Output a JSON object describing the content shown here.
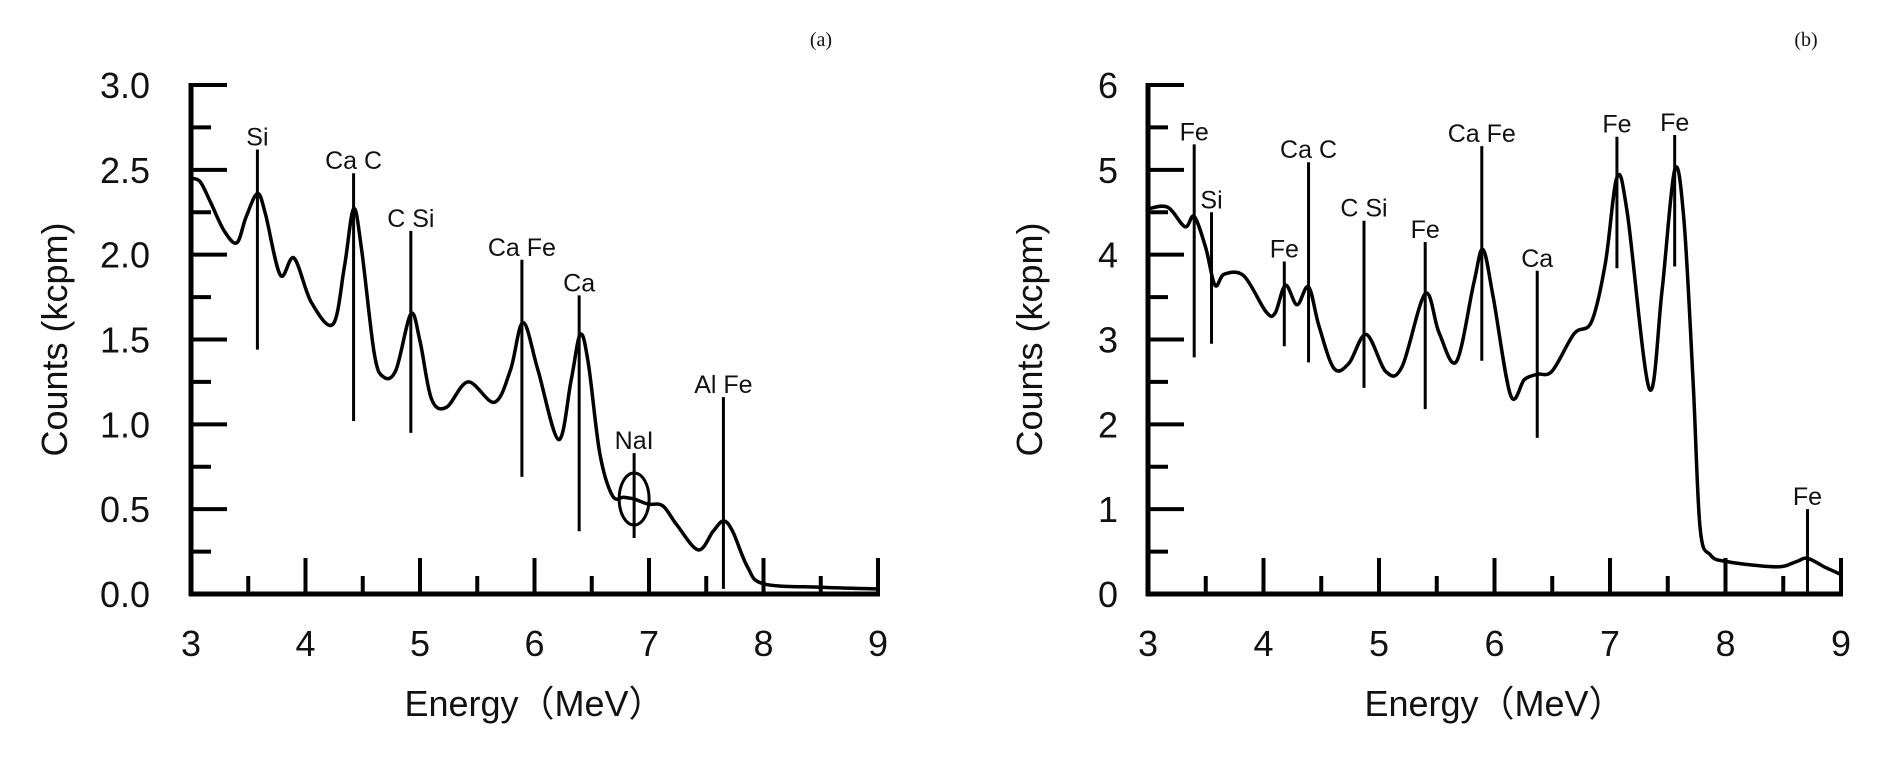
{
  "chart_data": [
    {
      "type": "line",
      "panel_label": "(a)",
      "xlabel": "Energy（MeV）",
      "ylabel": "Counts (kcpm)",
      "xlim": [
        3,
        9
      ],
      "ylim": [
        0,
        3.0
      ],
      "xticks": [
        "3",
        "4",
        "5",
        "6",
        "7",
        "8",
        "9"
      ],
      "yticks": [
        "0.0",
        "0.5",
        "1.0",
        "1.5",
        "2.0",
        "2.5",
        "3.0"
      ],
      "grid": false,
      "line_color": "#000000",
      "series": [
        {
          "x": [
            3.0,
            3.08,
            3.17,
            3.29,
            3.4,
            3.48,
            3.58,
            3.65,
            3.78,
            3.9,
            4.05,
            4.24,
            4.34,
            4.42,
            4.49,
            4.6,
            4.68,
            4.79,
            4.92,
            5.0,
            5.1,
            5.23,
            5.42,
            5.65,
            5.79,
            5.9,
            6.03,
            6.21,
            6.32,
            6.4,
            6.47,
            6.57,
            6.68,
            6.78,
            6.87,
            6.99,
            7.12,
            7.24,
            7.43,
            7.56,
            7.65,
            7.73,
            7.86,
            8.0,
            8.5,
            9.0
          ],
          "y": [
            2.45,
            2.43,
            2.31,
            2.14,
            2.07,
            2.22,
            2.36,
            2.24,
            1.88,
            1.98,
            1.72,
            1.59,
            1.93,
            2.27,
            2.03,
            1.42,
            1.28,
            1.32,
            1.65,
            1.49,
            1.15,
            1.1,
            1.25,
            1.13,
            1.32,
            1.6,
            1.32,
            0.91,
            1.26,
            1.53,
            1.36,
            0.83,
            0.58,
            0.57,
            0.56,
            0.53,
            0.52,
            0.41,
            0.26,
            0.37,
            0.43,
            0.37,
            0.16,
            0.06,
            0.04,
            0.03
          ]
        }
      ],
      "annotations": [
        {
          "text": "Si",
          "x": 3.58,
          "y_top": 2.62,
          "y_bottom": 1.44
        },
        {
          "text": "Ca C",
          "x": 4.42,
          "y_top": 2.48,
          "y_bottom": 1.02
        },
        {
          "text": "C Si",
          "x": 4.92,
          "y_top": 2.14,
          "y_bottom": 0.95
        },
        {
          "text": "Ca Fe",
          "x": 5.89,
          "y_top": 1.97,
          "y_bottom": 0.69
        },
        {
          "text": "Ca",
          "x": 6.39,
          "y_top": 1.76,
          "y_bottom": 0.37
        },
        {
          "text": "NaI",
          "x": 6.87,
          "y_top": 0.83,
          "y_bottom": 0.33,
          "circle": true
        },
        {
          "text": "Al Fe",
          "x": 7.65,
          "y_top": 1.16,
          "y_bottom": 0.03
        }
      ]
    },
    {
      "type": "line",
      "panel_label": "(b)",
      "xlabel": "Energy（MeV）",
      "ylabel": "Counts (kcpm)",
      "xlim": [
        3,
        9
      ],
      "ylim": [
        0,
        6
      ],
      "xticks": [
        "3",
        "4",
        "5",
        "6",
        "7",
        "8",
        "9"
      ],
      "yticks": [
        "0",
        "1",
        "2",
        "3",
        "4",
        "5",
        "6"
      ],
      "grid": false,
      "line_color": "#000000",
      "series": [
        {
          "x": [
            3.0,
            3.17,
            3.32,
            3.4,
            3.5,
            3.58,
            3.66,
            3.83,
            4.02,
            4.1,
            4.19,
            4.29,
            4.39,
            4.48,
            4.61,
            4.74,
            4.89,
            5.06,
            5.2,
            5.4,
            5.52,
            5.67,
            5.82,
            5.9,
            5.99,
            6.14,
            6.26,
            6.37,
            6.5,
            6.69,
            6.84,
            6.96,
            7.06,
            7.15,
            7.34,
            7.45,
            7.56,
            7.64,
            7.72,
            7.78,
            7.87,
            8.02,
            8.44,
            8.61,
            8.71,
            8.87,
            9.0
          ],
          "y": [
            4.54,
            4.56,
            4.33,
            4.45,
            4.08,
            3.64,
            3.77,
            3.75,
            3.33,
            3.31,
            3.64,
            3.41,
            3.62,
            3.16,
            2.66,
            2.72,
            3.06,
            2.62,
            2.68,
            3.54,
            3.08,
            2.74,
            3.66,
            4.06,
            3.49,
            2.34,
            2.53,
            2.59,
            2.63,
            3.07,
            3.21,
            3.9,
            4.91,
            4.49,
            2.42,
            3.57,
            5.0,
            4.41,
            2.49,
            0.78,
            0.46,
            0.38,
            0.32,
            0.38,
            0.42,
            0.31,
            0.23
          ]
        }
      ],
      "annotations": [
        {
          "text": "Fe",
          "x": 3.4,
          "y_top": 5.3,
          "y_bottom": 2.79
        },
        {
          "text": "Si",
          "x": 3.55,
          "y_top": 4.5,
          "y_bottom": 2.95
        },
        {
          "text": "Fe",
          "x": 4.18,
          "y_top": 3.92,
          "y_bottom": 2.92
        },
        {
          "text": "Ca C",
          "x": 4.39,
          "y_top": 5.09,
          "y_bottom": 2.73
        },
        {
          "text": "C Si",
          "x": 4.87,
          "y_top": 4.4,
          "y_bottom": 2.43
        },
        {
          "text": "Fe",
          "x": 5.4,
          "y_top": 4.15,
          "y_bottom": 2.18
        },
        {
          "text": "Ca Fe",
          "x": 5.89,
          "y_top": 5.28,
          "y_bottom": 2.75
        },
        {
          "text": "Ca",
          "x": 6.37,
          "y_top": 3.81,
          "y_bottom": 1.84
        },
        {
          "text": "Fe",
          "x": 7.06,
          "y_top": 5.39,
          "y_bottom": 3.84
        },
        {
          "text": "Fe",
          "x": 7.56,
          "y_top": 5.41,
          "y_bottom": 3.86
        },
        {
          "text": "Fe",
          "x": 8.71,
          "y_top": 1.0,
          "y_bottom": 0.02
        }
      ]
    }
  ]
}
